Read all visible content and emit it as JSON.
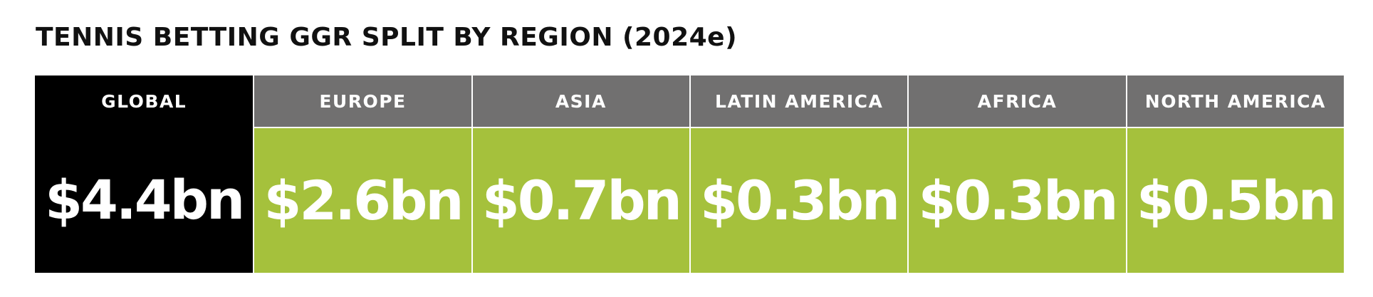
{
  "colors": {
    "global_bg": "#000000",
    "header_bg": "#717070",
    "value_bg": "#a5c13c",
    "text": "#ffffff",
    "title": "#111111"
  },
  "chart_data": {
    "type": "table",
    "title": "TENNIS BETTING GGR SPLIT BY REGION (2024e)",
    "unit": "USD billions",
    "columns": [
      {
        "region": "GLOBAL",
        "label": "$4.4bn",
        "value": 4.4
      },
      {
        "region": "EUROPE",
        "label": "$2.6bn",
        "value": 2.6
      },
      {
        "region": "ASIA",
        "label": "$0.7bn",
        "value": 0.7
      },
      {
        "region": "LATIN AMERICA",
        "label": "$0.3bn",
        "value": 0.3
      },
      {
        "region": "AFRICA",
        "label": "$0.3bn",
        "value": 0.3
      },
      {
        "region": "NORTH AMERICA",
        "label": "$0.5bn",
        "value": 0.5
      }
    ]
  }
}
